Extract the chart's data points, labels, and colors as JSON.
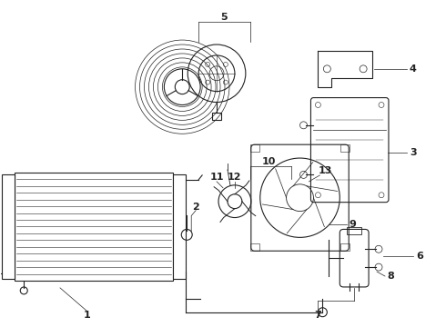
{
  "bg_color": "#ffffff",
  "line_color": "#222222",
  "figsize": [
    4.9,
    3.6
  ],
  "dpi": 100
}
